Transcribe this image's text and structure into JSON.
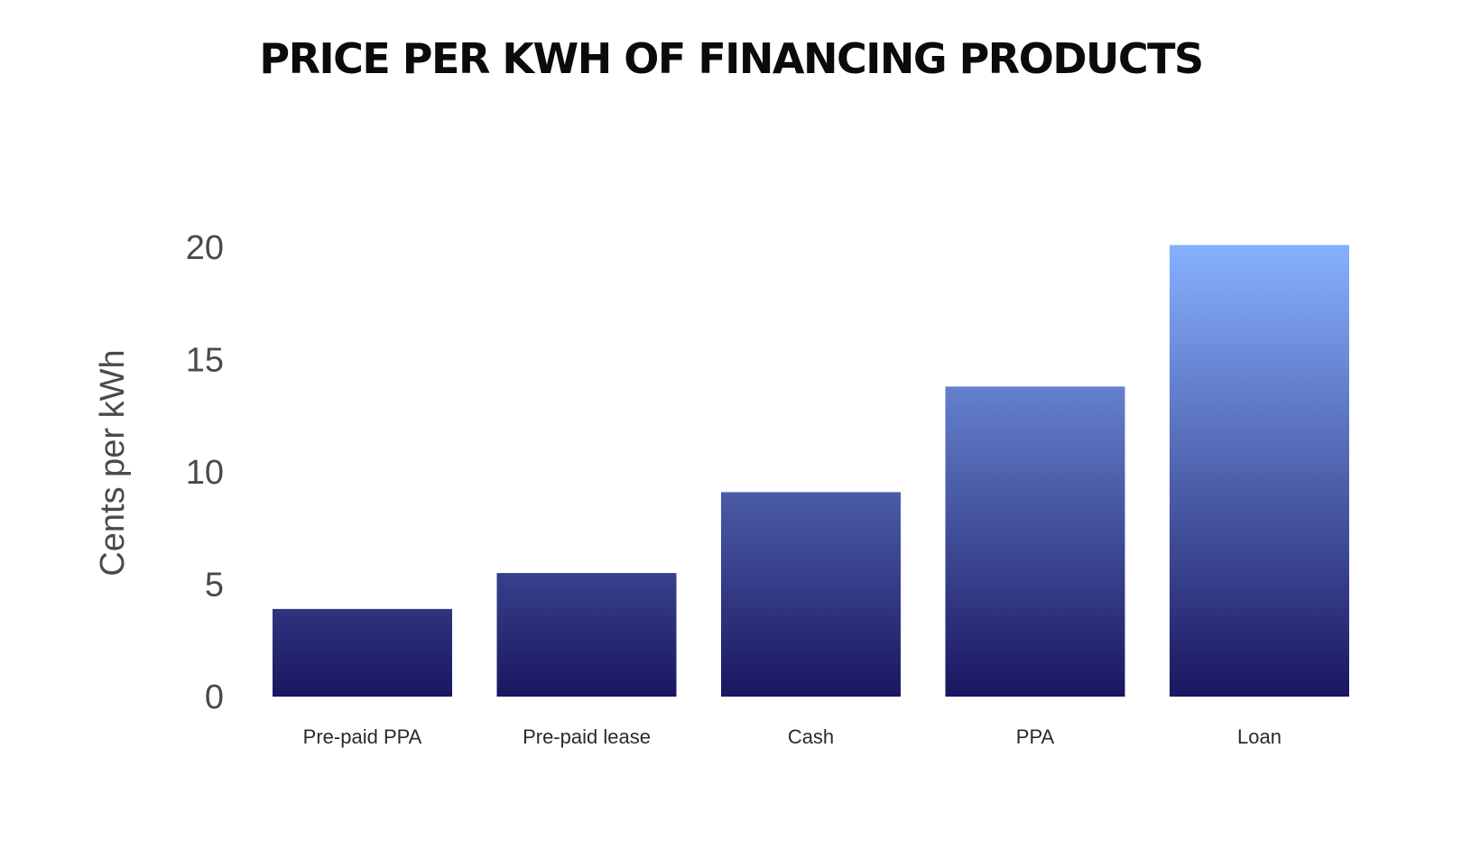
{
  "chart_data": {
    "type": "bar",
    "title": "PRICE PER KWH OF FINANCING PRODUCTS",
    "xlabel": "",
    "ylabel": "Cents per kWh",
    "categories": [
      "Pre-paid PPA",
      "Pre-paid lease",
      "Cash",
      "PPA",
      "Loan"
    ],
    "values": [
      3.9,
      5.5,
      9.1,
      13.8,
      20.1
    ],
    "yticks": [
      "0",
      "5",
      "10",
      "15",
      "20"
    ],
    "ylim": [
      0,
      20.5
    ],
    "grid": false,
    "legend": "none",
    "colors": {
      "bar_top": "#86b1ff",
      "bar_bottom": "#1a1660"
    }
  }
}
